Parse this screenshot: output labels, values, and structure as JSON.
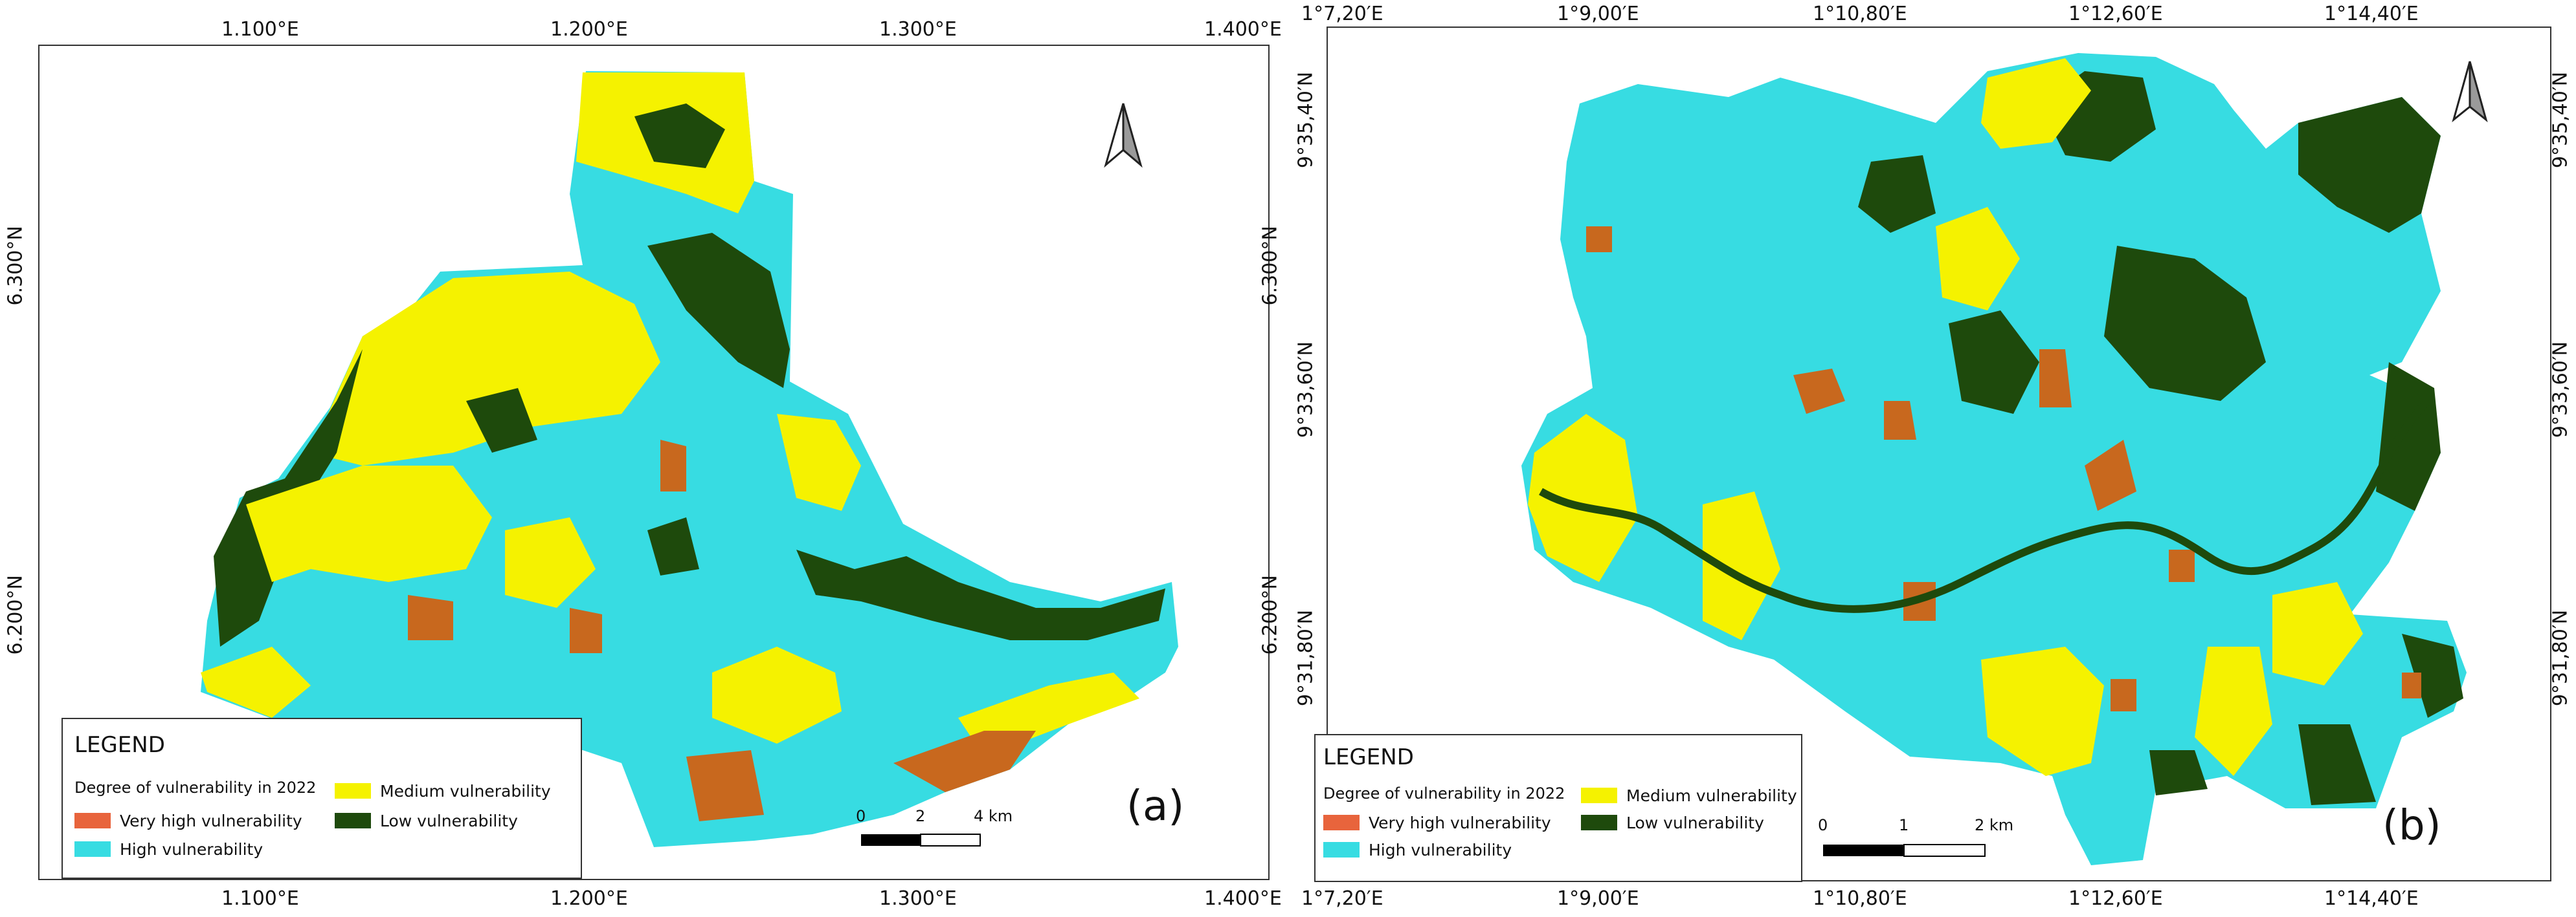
{
  "colors": {
    "very_high": "#e8643c",
    "very_high_dark": "#c8681e",
    "high": "#37dce2",
    "medium": "#f5f200",
    "low": "#1e4a0c"
  },
  "panels": [
    {
      "id": "a",
      "label": "(a)",
      "lon_ticks": [
        "1.100°E",
        "1.200°E",
        "1.300°E",
        "1.400°E"
      ],
      "lat_ticks": [
        "6.300°N",
        "6.200°N"
      ],
      "legend": {
        "title": "LEGEND",
        "subtitle": "Degree of vulnerability in 2022",
        "items": {
          "very_high": "Very high vulnerability",
          "high": "High vulnerability",
          "medium": "Medium vulnerability",
          "low": "Low vulnerability"
        }
      },
      "scale": [
        "0",
        "2",
        "4 km"
      ],
      "north_icon": "north-arrow-icon"
    },
    {
      "id": "b",
      "label": "(b)",
      "lon_ticks": [
        "1°7,20′E",
        "1°9,00′E",
        "1°10,80′E",
        "1°12,60′E",
        "1°14,40′E"
      ],
      "lat_ticks": [
        "9°35,40′N",
        "9°33,60′N",
        "9°31,80′N"
      ],
      "legend": {
        "title": "LEGEND",
        "subtitle": "Degree of vulnerability in 2022",
        "items": {
          "very_high": "Very high vulnerability",
          "high": "High vulnerability",
          "medium": "Medium vulnerability",
          "low": "Low vulnerability"
        }
      },
      "scale": [
        "0",
        "1",
        "2 km"
      ],
      "north_icon": "north-arrow-icon"
    }
  ]
}
